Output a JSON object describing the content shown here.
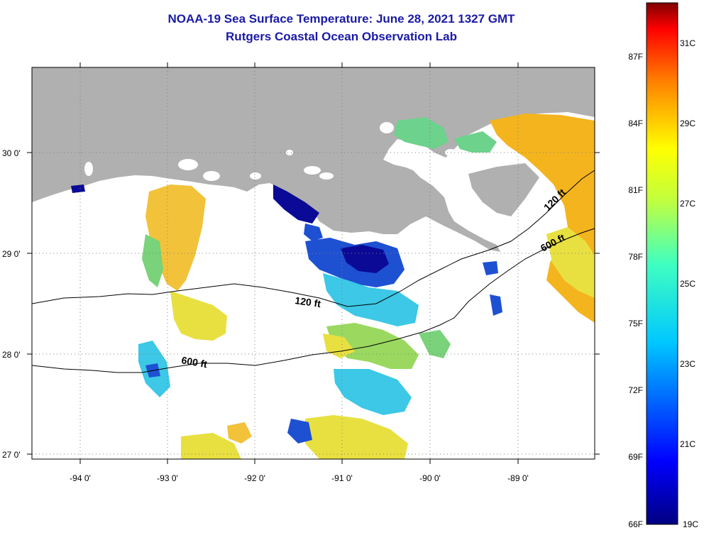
{
  "title": "NOAA-19 Sea Surface Temperature:  June 28, 2021 1327 GMT",
  "subtitle": "Rutgers Coastal Ocean Observation Lab",
  "axes": {
    "lat_labels": [
      "30 0'",
      "29 0'",
      "28 0'",
      "27 0'"
    ],
    "lon_labels": [
      "-94 0'",
      "-93 0'",
      "-92 0'",
      "-91 0'",
      "-90 0'",
      "-89 0'"
    ]
  },
  "contours": {
    "shelf_label": "120 ft",
    "shelf_label_2": "120 ft",
    "slope_label": "600 ft",
    "slope_label_2": "600 ft"
  },
  "colorbar": {
    "fahrenheit": [
      "87F",
      "84F",
      "81F",
      "78F",
      "75F",
      "72F",
      "69F",
      "66F"
    ],
    "celsius": [
      "31C",
      "29C",
      "27C",
      "25C",
      "23C",
      "21C",
      "19C"
    ]
  },
  "colors": {
    "land": "#b0b0b0",
    "title": "#1a1aa6",
    "warm": "#f4b41e",
    "yellow": "#e8e040",
    "green": "#7ad27a",
    "cyan": "#3cc8e6",
    "blue": "#1e50d2",
    "navy": "#0a0a96"
  }
}
